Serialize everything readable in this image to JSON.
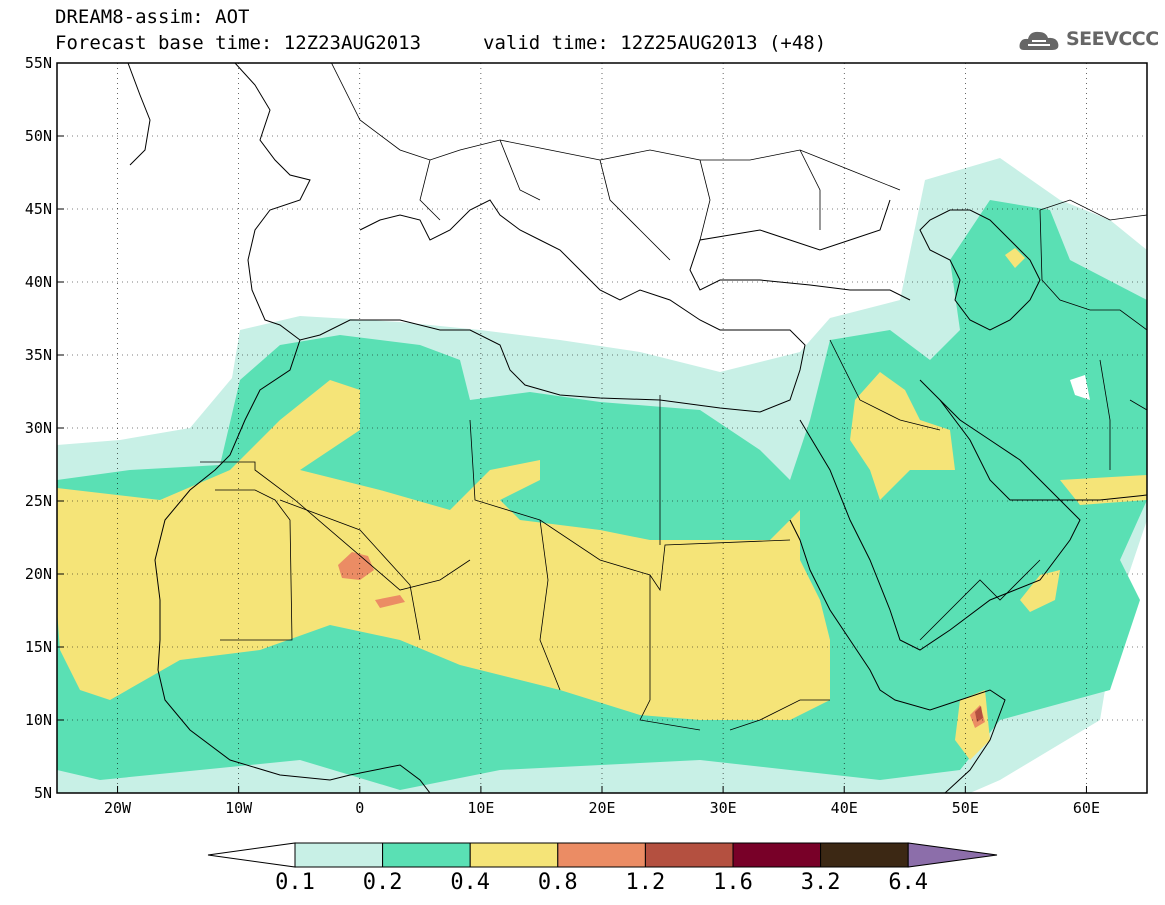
{
  "header": {
    "title": "DREAM8-assim: AOT",
    "base_time": "Forecast base time: 12Z23AUG2013",
    "valid_time": "valid time: 12Z25AUG2013 (+48)"
  },
  "logo": {
    "text": "SEEVCCC",
    "icon": "cloud-logo-icon"
  },
  "axes": {
    "lat_labels": [
      "55N",
      "50N",
      "45N",
      "40N",
      "35N",
      "30N",
      "25N",
      "20N",
      "15N",
      "10N",
      "5N"
    ],
    "lon_labels": [
      "20W",
      "10W",
      "0",
      "10E",
      "20E",
      "30E",
      "40E",
      "50E",
      "60E"
    ],
    "lat_range": [
      5,
      55
    ],
    "lon_range": [
      -25,
      65
    ]
  },
  "colorbar": {
    "labels": [
      "0.1",
      "0.2",
      "0.4",
      "0.8",
      "1.2",
      "1.6",
      "3.2",
      "6.4"
    ],
    "colors": [
      "#c8f0e6",
      "#5ae0b4",
      "#f5e478",
      "#eb8c64",
      "#b45040",
      "#780028",
      "#3c2814"
    ],
    "under_color": "#ffffff",
    "over_color": "#8c6eaa"
  },
  "field_colors": {
    "c01": "#c8f0e6",
    "c02": "#5ae0b4",
    "c04": "#f5e478",
    "c08": "#eb8c64",
    "c12": "#b45040"
  }
}
